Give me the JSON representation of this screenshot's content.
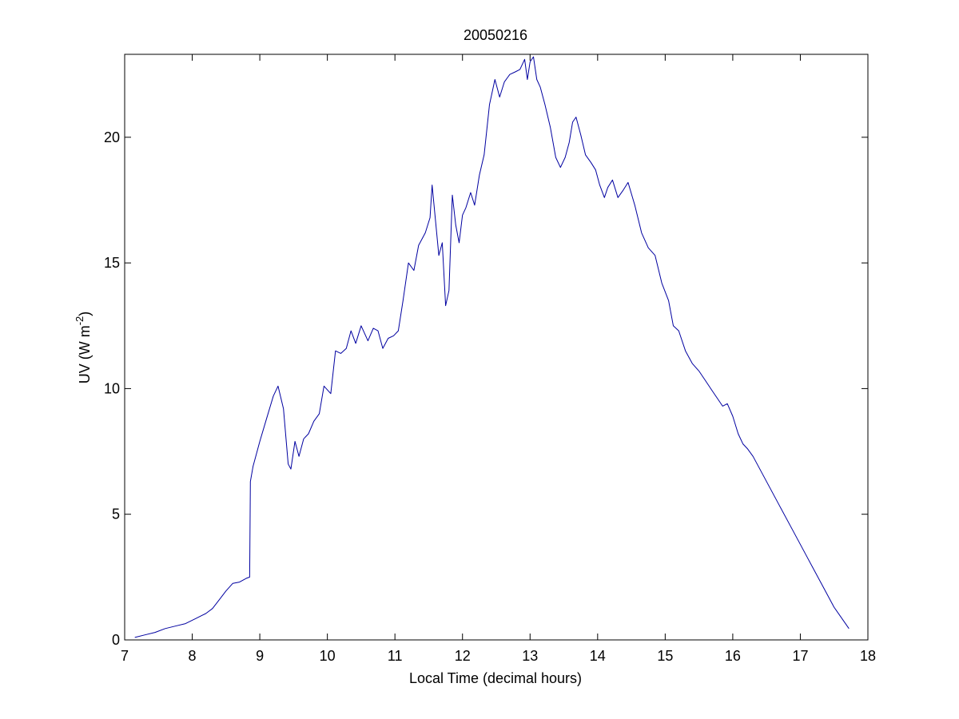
{
  "chart_data": {
    "type": "line",
    "title": "20050216",
    "xlabel": "Local Time (decimal hours)",
    "ylabel": {
      "base": "UV (W m",
      "superscript": "-2",
      "close": ")"
    },
    "xlim": [
      7,
      18
    ],
    "ylim": [
      0,
      23.3
    ],
    "xticks": [
      7,
      8,
      9,
      10,
      11,
      12,
      13,
      14,
      15,
      16,
      17,
      18
    ],
    "yticks": [
      0,
      5,
      10,
      15,
      20
    ],
    "grid": false,
    "series_color": "#0000a0",
    "series": [
      {
        "x": [
          7.15,
          7.3,
          7.45,
          7.6,
          7.75,
          7.9,
          8.05,
          8.2,
          8.3,
          8.4,
          8.5,
          8.6,
          8.7,
          8.8,
          8.85,
          8.86,
          8.9,
          9.0,
          9.1,
          9.2,
          9.27,
          9.35,
          9.42,
          9.46,
          9.52,
          9.58,
          9.65,
          9.72,
          9.8,
          9.88,
          9.95,
          10.05,
          10.12,
          10.2,
          10.28,
          10.35,
          10.42,
          10.5,
          10.6,
          10.68,
          10.75,
          10.82,
          10.9,
          10.98,
          11.05,
          11.12,
          11.2,
          11.28,
          11.35,
          11.45,
          11.52,
          11.55,
          11.6,
          11.65,
          11.7,
          11.75,
          11.8,
          11.85,
          11.9,
          11.95,
          12.0,
          12.05,
          12.12,
          12.18,
          12.25,
          12.32,
          12.4,
          12.48,
          12.55,
          12.62,
          12.7,
          12.78,
          12.85,
          12.92,
          12.96,
          13.0,
          13.05,
          13.1,
          13.15,
          13.22,
          13.3,
          13.38,
          13.45,
          13.52,
          13.58,
          13.63,
          13.68,
          13.75,
          13.82,
          13.9,
          13.97,
          14.03,
          14.1,
          14.15,
          14.22,
          14.3,
          14.38,
          14.45,
          14.55,
          14.65,
          14.75,
          14.85,
          14.95,
          15.05,
          15.12,
          15.2,
          15.3,
          15.4,
          15.5,
          15.6,
          15.7,
          15.8,
          15.85,
          15.92,
          16.0,
          16.08,
          16.15,
          16.22,
          16.3,
          16.5,
          16.7,
          16.9,
          17.1,
          17.3,
          17.5,
          17.72
        ],
        "y": [
          0.1,
          0.2,
          0.3,
          0.45,
          0.55,
          0.65,
          0.85,
          1.05,
          1.25,
          1.6,
          1.95,
          2.25,
          2.3,
          2.45,
          2.5,
          6.3,
          6.9,
          7.9,
          8.8,
          9.7,
          10.1,
          9.2,
          7.0,
          6.8,
          7.9,
          7.3,
          8.0,
          8.2,
          8.7,
          9.0,
          10.1,
          9.8,
          11.5,
          11.4,
          11.6,
          12.3,
          11.8,
          12.5,
          11.9,
          12.4,
          12.3,
          11.6,
          12.0,
          12.1,
          12.3,
          13.5,
          15.0,
          14.7,
          15.7,
          16.2,
          16.8,
          18.1,
          16.7,
          15.3,
          15.8,
          13.3,
          13.9,
          17.7,
          16.5,
          15.8,
          16.9,
          17.2,
          17.8,
          17.3,
          18.5,
          19.3,
          21.3,
          22.3,
          21.6,
          22.2,
          22.5,
          22.6,
          22.7,
          23.1,
          22.3,
          23.0,
          23.2,
          22.3,
          22.0,
          21.3,
          20.4,
          19.2,
          18.8,
          19.2,
          19.8,
          20.6,
          20.8,
          20.1,
          19.3,
          19.0,
          18.7,
          18.1,
          17.6,
          18.0,
          18.3,
          17.6,
          17.9,
          18.2,
          17.3,
          16.2,
          15.6,
          15.3,
          14.2,
          13.5,
          12.5,
          12.3,
          11.5,
          11.0,
          10.7,
          10.3,
          9.9,
          9.5,
          9.3,
          9.4,
          8.9,
          8.2,
          7.8,
          7.6,
          7.3,
          6.3,
          5.3,
          4.3,
          3.3,
          2.3,
          1.3,
          0.45
        ]
      }
    ]
  }
}
